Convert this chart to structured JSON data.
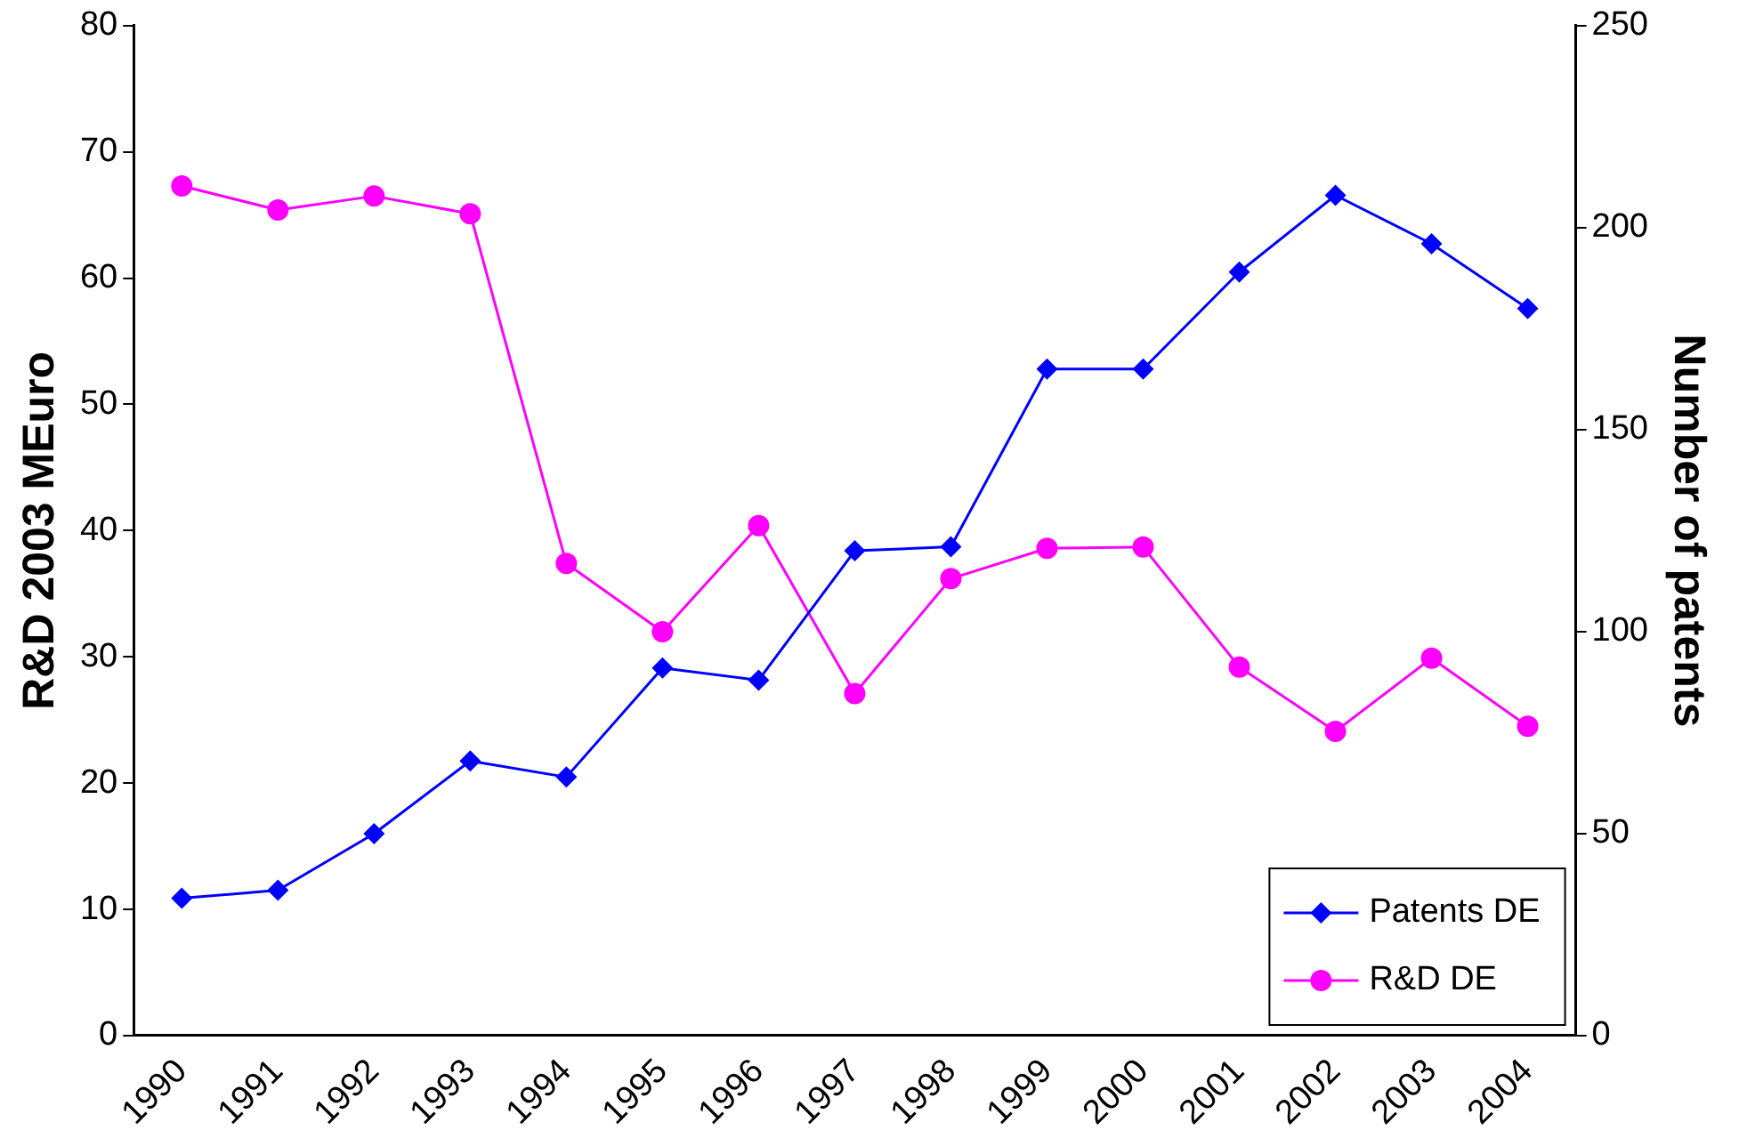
{
  "chart_data": {
    "type": "line",
    "ylabel": "R&D 2003 MEuro",
    "y2label": "Number of patents",
    "categories": [
      "1990",
      "1991",
      "1992",
      "1993",
      "1994",
      "1995",
      "1996",
      "1997",
      "1998",
      "1999",
      "2000",
      "2001",
      "2002",
      "2003",
      "2004"
    ],
    "series": [
      {
        "name": "Patents DE",
        "color": "#0000ff",
        "marker": "diamond",
        "axis": "y2",
        "values": [
          34,
          36,
          50,
          68,
          64,
          91,
          88,
          120,
          121,
          165,
          165,
          189,
          208,
          196,
          180
        ]
      },
      {
        "name": "R&D DE",
        "color": "#ff00ff",
        "marker": "circle",
        "values": [
          67.3,
          65.4,
          66.5,
          65.1,
          37.4,
          32,
          40.4,
          27.1,
          36.2,
          38.6,
          38.7,
          29.2,
          24.1,
          29.9,
          24.5
        ]
      }
    ],
    "ylim": [
      0,
      80
    ],
    "yticks": [
      0,
      10,
      20,
      30,
      40,
      50,
      60,
      70,
      80
    ],
    "y2lim": [
      0,
      250
    ],
    "y2ticks": [
      0,
      50,
      100,
      150,
      200,
      250
    ],
    "grid": false,
    "legend": "bottom right"
  }
}
